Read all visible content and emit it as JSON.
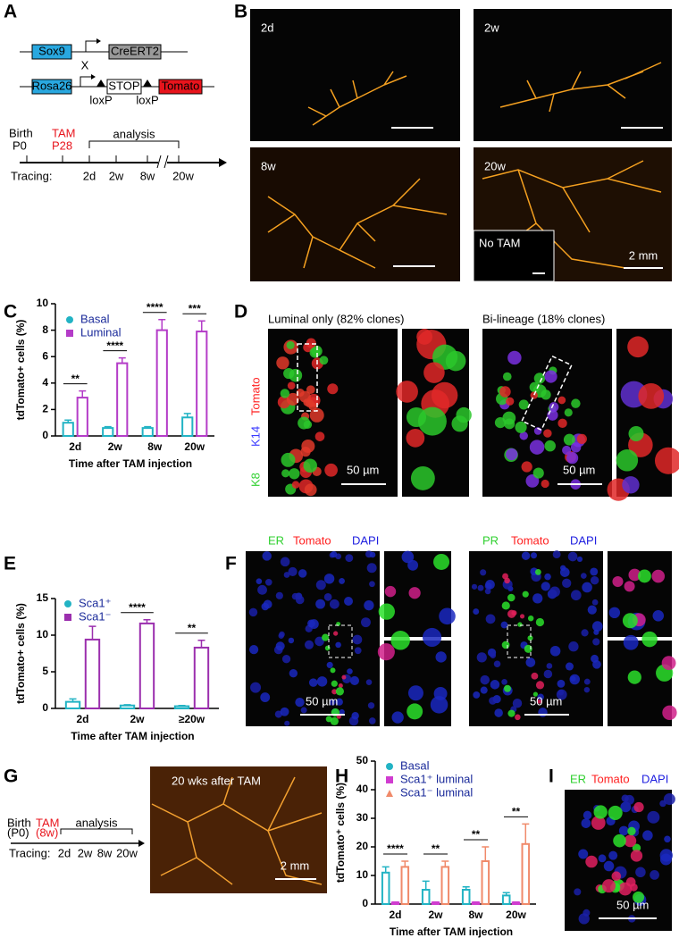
{
  "panel_letters": [
    "A",
    "B",
    "C",
    "D",
    "E",
    "F",
    "G",
    "H",
    "I"
  ],
  "panel_a": {
    "gene1": "Sox9",
    "gene1_product": "CreERT2",
    "cross": "X",
    "gene2": "Rosa26",
    "stop": "STOP",
    "reporter": "Tomato",
    "loxp": [
      "loxP",
      "loxP"
    ],
    "birth": [
      "Birth",
      "P0"
    ],
    "tam": [
      "TAM",
      "P28"
    ],
    "analysis": "analysis",
    "tracing": "Tracing:",
    "timepoints": [
      "2d",
      "2w",
      "8w",
      "20w"
    ]
  },
  "panel_b": {
    "labels": [
      "2d",
      "2w",
      "8w",
      "20w"
    ],
    "inset": "No TAM",
    "scale": "2 mm"
  },
  "panel_d": {
    "titles": [
      "Luminal only (82% clones)",
      "Bi-lineage (18% clones)"
    ],
    "stain": [
      "K8",
      "K14",
      "Tomato"
    ],
    "scale": "50 µm"
  },
  "panel_f": {
    "left_stain": [
      "ER",
      "Tomato",
      "DAPI"
    ],
    "right_stain": [
      "PR",
      "Tomato",
      "DAPI"
    ],
    "scale": "50 µm"
  },
  "panel_g": {
    "birth": "Birth",
    "birth_age": "(P0)",
    "tam": "TAM",
    "tam_age": "(8w)",
    "analysis": "analysis",
    "tracing": "Tracing:",
    "timepoints": [
      "2d",
      "2w",
      "8w",
      "20w"
    ],
    "image_label": "20 wks after TAM",
    "scale": "2 mm"
  },
  "panel_i": {
    "stain": [
      "ER",
      "Tomato",
      "DAPI"
    ],
    "scale": "50 µm"
  },
  "chart_data": [
    {
      "type": "bar",
      "y_label": "tdTomato+ cells (%)",
      "x_label": "Time after TAM injection",
      "categories": [
        "2d",
        "2w",
        "8w",
        "20w"
      ],
      "series": [
        {
          "name": "Basal",
          "color": "#22b3c4",
          "marker": "circle",
          "values": [
            1.0,
            0.6,
            0.6,
            1.4
          ],
          "errors": [
            0.2,
            0.1,
            0.1,
            0.3
          ]
        },
        {
          "name": "Luminal",
          "color": "#b43cc8",
          "marker": "square",
          "values": [
            2.9,
            5.5,
            8.0,
            7.9
          ],
          "errors": [
            0.5,
            0.4,
            0.8,
            0.8
          ]
        }
      ],
      "significance": [
        "**",
        "****",
        "****",
        "***"
      ],
      "ylim": [
        0,
        10
      ],
      "yticks": [
        0,
        2,
        4,
        6,
        8,
        10
      ]
    },
    {
      "type": "bar",
      "y_label": "tdTomato+ cells (%)",
      "x_label": "Time after TAM injection",
      "categories": [
        "2d",
        "2w",
        "≥20w"
      ],
      "series": [
        {
          "name": "Sca1⁺",
          "color": "#22b3c4",
          "marker": "circle",
          "values": [
            0.9,
            0.4,
            0.3
          ],
          "errors": [
            0.4,
            0.1,
            0.1
          ]
        },
        {
          "name": "Sca1⁻",
          "color": "#9b2fae",
          "marker": "square",
          "values": [
            9.4,
            11.6,
            8.3
          ],
          "errors": [
            1.8,
            0.5,
            1.0
          ]
        }
      ],
      "significance": [
        null,
        "****",
        "**"
      ],
      "ylim": [
        0,
        15
      ],
      "yticks": [
        0,
        5,
        10,
        15
      ]
    },
    {
      "type": "bar",
      "y_label": "tdTomato⁺ cells (%)",
      "x_label": "Time after TAM injection",
      "categories": [
        "2d",
        "2w",
        "8w",
        "20w"
      ],
      "series": [
        {
          "name": "Basal",
          "color": "#22b3c4",
          "marker": "circle",
          "values": [
            11,
            5,
            5,
            3
          ],
          "errors": [
            2,
            3,
            1,
            1
          ]
        },
        {
          "name": "Sca1⁺ luminal",
          "color": "#d03cd0",
          "marker": "square",
          "values": [
            0.5,
            0.5,
            0.5,
            0.5
          ],
          "errors": [
            0.2,
            0.2,
            0.2,
            0.2
          ]
        },
        {
          "name": "Sca1⁻ luminal",
          "color": "#f08a6a",
          "marker": "triangle",
          "values": [
            13,
            13,
            15,
            21
          ],
          "errors": [
            2,
            2,
            5,
            7
          ]
        }
      ],
      "significance": [
        "****",
        "**",
        "**",
        "**"
      ],
      "ylim": [
        0,
        50
      ],
      "yticks": [
        0,
        10,
        20,
        30,
        40,
        50
      ]
    }
  ]
}
